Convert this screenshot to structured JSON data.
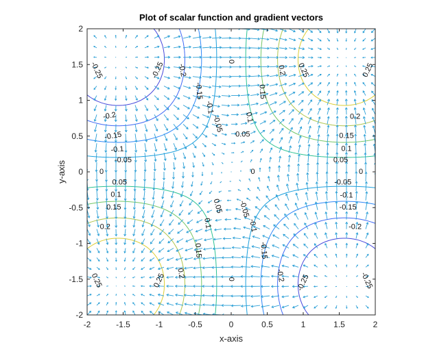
{
  "chart_data": {
    "type": "contour",
    "title": "Plot of scalar function and gradient vectors",
    "xlabel": "x-axis",
    "ylabel": "y-axis",
    "xlim": [
      -2,
      2
    ],
    "ylim": [
      -2,
      2
    ],
    "xticks": [
      "-2",
      "-1.5",
      "-1",
      "-0.5",
      "0",
      "0.5",
      "1",
      "1.5",
      "2"
    ],
    "yticks": [
      "-2",
      "-1.5",
      "-1",
      "-0.5",
      "0",
      "0.5",
      "1",
      "1.5",
      "2"
    ],
    "contour_levels": [
      -0.25,
      -0.2,
      -0.15,
      -0.1,
      -0.05,
      0,
      0.05,
      0.1,
      0.15,
      0.2,
      0.25
    ],
    "grid": false,
    "quiver": true,
    "colors": {
      "vectors": "#2a9fd6",
      "colormap": [
        "#3e26a8",
        "#4754ef",
        "#2f83fb",
        "#15a6d6",
        "#17bfa0",
        "#7cc75f",
        "#cfc23c",
        "#f9e51e"
      ]
    },
    "contour_labels": [
      {
        "text": "-0.25",
        "x": -1.87,
        "y": 1.42,
        "rot": 65
      },
      {
        "text": "-0.25",
        "x": -1.02,
        "y": 1.42,
        "rot": -65
      },
      {
        "text": "-0.2",
        "x": -0.68,
        "y": 1.42,
        "rot": 80
      },
      {
        "text": "-0.15",
        "x": -0.45,
        "y": 1.13,
        "rot": 85
      },
      {
        "text": "-0.1",
        "x": -0.3,
        "y": 0.9,
        "rot": 80
      },
      {
        "text": "-0.05",
        "x": -0.19,
        "y": 0.67,
        "rot": 75
      },
      {
        "text": "0",
        "x": 0.0,
        "y": 1.54,
        "rot": 90
      },
      {
        "text": "0.05",
        "x": 0.16,
        "y": 0.52,
        "rot": 0
      },
      {
        "text": "0.1",
        "x": 0.25,
        "y": 0.76,
        "rot": 80
      },
      {
        "text": "0.15",
        "x": 0.43,
        "y": 1.12,
        "rot": 85
      },
      {
        "text": "0.2",
        "x": 0.7,
        "y": 1.42,
        "rot": 80
      },
      {
        "text": "0.25",
        "x": 1.0,
        "y": 1.42,
        "rot": 65
      },
      {
        "text": "0.25",
        "x": 1.9,
        "y": 1.42,
        "rot": -65
      },
      {
        "text": "-0.2",
        "x": -1.69,
        "y": 0.78,
        "rot": -10
      },
      {
        "text": "-0.15",
        "x": -1.64,
        "y": 0.5,
        "rot": -10
      },
      {
        "text": "-0.1",
        "x": -1.58,
        "y": 0.31,
        "rot": -5
      },
      {
        "text": "-0.05",
        "x": -1.5,
        "y": 0.16,
        "rot": 0
      },
      {
        "text": "0",
        "x": -1.8,
        "y": 0.0,
        "rot": 0
      },
      {
        "text": "0.05",
        "x": -1.55,
        "y": -0.15,
        "rot": 0
      },
      {
        "text": "0.1",
        "x": -1.6,
        "y": -0.32,
        "rot": 0
      },
      {
        "text": "0.15",
        "x": -1.63,
        "y": -0.5,
        "rot": 0
      },
      {
        "text": "0.2",
        "x": -1.75,
        "y": -0.77,
        "rot": 0
      },
      {
        "text": "0.2",
        "x": 1.72,
        "y": 0.77,
        "rot": 0
      },
      {
        "text": "0.15",
        "x": 1.6,
        "y": 0.5,
        "rot": 0
      },
      {
        "text": "0.1",
        "x": 1.6,
        "y": 0.32,
        "rot": 0
      },
      {
        "text": "0.05",
        "x": 1.52,
        "y": 0.16,
        "rot": 0
      },
      {
        "text": "0",
        "x": 1.8,
        "y": 0.0,
        "rot": 0
      },
      {
        "text": "-0.05",
        "x": 1.55,
        "y": -0.15,
        "rot": 0
      },
      {
        "text": "-0.1",
        "x": 1.6,
        "y": -0.33,
        "rot": 0
      },
      {
        "text": "-0.15",
        "x": 1.62,
        "y": -0.5,
        "rot": 0
      },
      {
        "text": "-0.2",
        "x": 1.72,
        "y": -0.77,
        "rot": 0
      },
      {
        "text": "0",
        "x": 0.3,
        "y": 0.0,
        "rot": 0
      },
      {
        "text": "0.05",
        "x": -0.19,
        "y": -0.48,
        "rot": 75
      },
      {
        "text": "0.1",
        "x": -0.33,
        "y": -0.72,
        "rot": 80
      },
      {
        "text": "0.15",
        "x": -0.46,
        "y": -1.1,
        "rot": 85
      },
      {
        "text": "0.2",
        "x": -0.7,
        "y": -1.42,
        "rot": 80
      },
      {
        "text": "0.25",
        "x": -1.0,
        "y": -1.52,
        "rot": -65
      },
      {
        "text": "0.25",
        "x": -1.87,
        "y": -1.52,
        "rot": 65
      },
      {
        "text": "0",
        "x": 0.0,
        "y": -1.5,
        "rot": 90
      },
      {
        "text": "-0.05",
        "x": 0.18,
        "y": -0.52,
        "rot": 75
      },
      {
        "text": "-0.1",
        "x": 0.3,
        "y": -0.75,
        "rot": 80
      },
      {
        "text": "-0.15",
        "x": 0.45,
        "y": -1.1,
        "rot": 85
      },
      {
        "text": "-0.2",
        "x": 0.68,
        "y": -1.45,
        "rot": 80
      },
      {
        "text": "-0.25",
        "x": 1.0,
        "y": -1.55,
        "rot": -65
      },
      {
        "text": "-0.25",
        "x": 1.88,
        "y": -1.52,
        "rot": 65
      }
    ]
  }
}
